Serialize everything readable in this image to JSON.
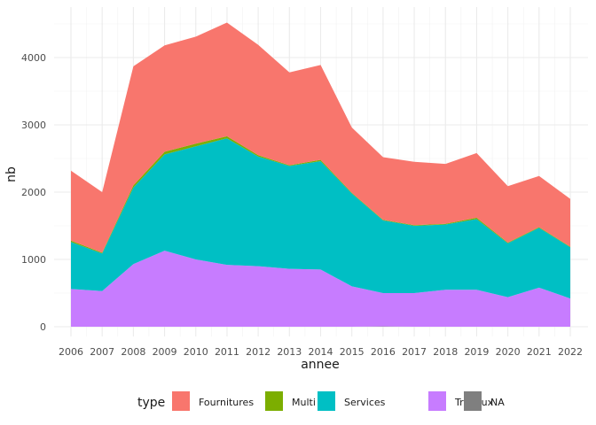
{
  "chart_data": {
    "type": "area",
    "stacked": true,
    "xlabel": "annee",
    "ylabel": "nb",
    "x": [
      2006,
      2007,
      2008,
      2009,
      2010,
      2011,
      2012,
      2013,
      2014,
      2015,
      2016,
      2017,
      2018,
      2019,
      2020,
      2021,
      2022
    ],
    "ylim": [
      0,
      4530
    ],
    "y_ticks": [
      0,
      1000,
      2000,
      3000,
      4000
    ],
    "grid": true,
    "legend": {
      "title": "type",
      "position": "bottom"
    },
    "series": [
      {
        "name": "NA",
        "color": "#7f7f7f",
        "values": [
          0,
          0,
          0,
          0,
          0,
          0,
          0,
          0,
          0,
          0,
          5,
          0,
          0,
          0,
          0,
          0,
          0
        ]
      },
      {
        "name": "Travaux",
        "color": "#c77cff",
        "values": [
          560,
          530,
          930,
          1130,
          1000,
          920,
          900,
          860,
          850,
          600,
          495,
          500,
          550,
          550,
          440,
          580,
          420
        ]
      },
      {
        "name": "Services",
        "color": "#00bfc4",
        "values": [
          700,
          560,
          1140,
          1430,
          1680,
          1880,
          1630,
          1530,
          1610,
          1380,
          1080,
          1000,
          970,
          1050,
          800,
          890,
          760
        ]
      },
      {
        "name": "Multi",
        "color": "#7cae00",
        "values": [
          20,
          10,
          30,
          40,
          40,
          30,
          20,
          10,
          20,
          10,
          10,
          10,
          10,
          20,
          10,
          10,
          10
        ]
      },
      {
        "name": "Fournitures",
        "color": "#f8766d",
        "values": [
          1040,
          900,
          1770,
          1580,
          1590,
          1690,
          1640,
          1380,
          1410,
          970,
          930,
          940,
          890,
          960,
          840,
          760,
          710
        ]
      }
    ],
    "legend_order": [
      "Fournitures",
      "Multi",
      "Services",
      "Travaux",
      "NA"
    ]
  }
}
